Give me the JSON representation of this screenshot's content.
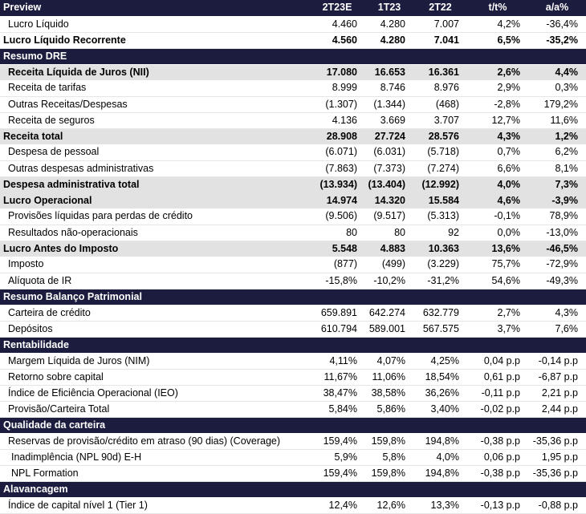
{
  "table": {
    "columns": [
      "Preview",
      "2T23E",
      "1T23",
      "2T22",
      "t/t%",
      "a/a%"
    ],
    "rows": [
      {
        "type": "row",
        "cells": [
          "Lucro Líquido",
          "4.460",
          "4.280",
          "7.007",
          "4,2%",
          "-36,4%"
        ]
      },
      {
        "type": "bold",
        "cells": [
          "Lucro Líquido Recorrente",
          "4.560",
          "4.280",
          "7.041",
          "6,5%",
          "-35,2%"
        ]
      },
      {
        "type": "section",
        "cells": [
          "Resumo DRE"
        ]
      },
      {
        "type": "hl-ind",
        "cells": [
          "Receita Líquida de Juros (NII)",
          "17.080",
          "16.653",
          "16.361",
          "2,6%",
          "4,4%"
        ]
      },
      {
        "type": "row",
        "cells": [
          "Receita de tarifas",
          "8.999",
          "8.746",
          "8.976",
          "2,9%",
          "0,3%"
        ]
      },
      {
        "type": "row",
        "cells": [
          "Outras Receitas/Despesas",
          "(1.307)",
          "(1.344)",
          "(468)",
          "-2,8%",
          "179,2%"
        ]
      },
      {
        "type": "row",
        "cells": [
          "Receita de seguros",
          "4.136",
          "3.669",
          "3.707",
          "12,7%",
          "11,6%"
        ]
      },
      {
        "type": "hl",
        "cells": [
          "Receita total",
          "28.908",
          "27.724",
          "28.576",
          "4,3%",
          "1,2%"
        ]
      },
      {
        "type": "row",
        "cells": [
          "Despesa de pessoal",
          "(6.071)",
          "(6.031)",
          "(5.718)",
          "0,7%",
          "6,2%"
        ]
      },
      {
        "type": "row",
        "cells": [
          "Outras despesas administrativas",
          "(7.863)",
          "(7.373)",
          "(7.274)",
          "6,6%",
          "8,1%"
        ]
      },
      {
        "type": "hl",
        "cells": [
          "Despesa administrativa total",
          "(13.934)",
          "(13.404)",
          "(12.992)",
          "4,0%",
          "7,3%"
        ]
      },
      {
        "type": "hl",
        "cells": [
          "Lucro Operacional",
          "14.974",
          "14.320",
          "15.584",
          "4,6%",
          "-3,9%"
        ]
      },
      {
        "type": "row",
        "cells": [
          "Provisões líquidas para perdas de crédito",
          "(9.506)",
          "(9.517)",
          "(5.313)",
          "-0,1%",
          "78,9%"
        ]
      },
      {
        "type": "row",
        "cells": [
          "Resultados não-operacionais",
          "80",
          "80",
          "92",
          "0,0%",
          "-13,0%"
        ]
      },
      {
        "type": "hl",
        "cells": [
          "Lucro Antes do Imposto",
          "5.548",
          "4.883",
          "10.363",
          "13,6%",
          "-46,5%"
        ]
      },
      {
        "type": "row",
        "cells": [
          "Imposto",
          "(877)",
          "(499)",
          "(3.229)",
          "75,7%",
          "-72,9%"
        ]
      },
      {
        "type": "row",
        "cells": [
          "Alíquota de IR",
          "-15,8%",
          "-10,2%",
          "-31,2%",
          "54,6%",
          "-49,3%"
        ]
      },
      {
        "type": "section",
        "cells": [
          "Resumo Balanço Patrimonial"
        ]
      },
      {
        "type": "row",
        "cells": [
          "Carteira de crédito",
          "659.891",
          "642.274",
          "632.779",
          "2,7%",
          "4,3%"
        ]
      },
      {
        "type": "row",
        "cells": [
          "Depósitos",
          "610.794",
          "589.001",
          "567.575",
          "3,7%",
          "7,6%"
        ]
      },
      {
        "type": "section",
        "cells": [
          "Rentabilidade"
        ]
      },
      {
        "type": "row",
        "cells": [
          "Margem Líquida de Juros (NIM)",
          "4,11%",
          "4,07%",
          "4,25%",
          "0,04 p.p",
          "-0,14 p.p"
        ]
      },
      {
        "type": "row",
        "cells": [
          "Retorno sobre capital",
          "11,67%",
          "11,06%",
          "18,54%",
          "0,61 p.p",
          "-6,87 p.p"
        ]
      },
      {
        "type": "row",
        "cells": [
          "Índice de Eficiência Operacional (IEO)",
          "38,47%",
          "38,58%",
          "36,26%",
          "-0,11 p.p",
          "2,21 p.p"
        ]
      },
      {
        "type": "row",
        "cells": [
          "Provisão/Carteira Total",
          "5,84%",
          "5,86%",
          "3,40%",
          "-0,02 p.p",
          "2,44 p.p"
        ]
      },
      {
        "type": "section",
        "cells": [
          "Qualidade da carteira"
        ]
      },
      {
        "type": "row",
        "cells": [
          "Reservas de provisão/crédito em atraso (90 dias) (Coverage)",
          "159,4%",
          "159,8%",
          "194,8%",
          "-0,38 p.p",
          "-35,36 p.p"
        ]
      },
      {
        "type": "row-ind",
        "cells": [
          "Inadimplência (NPL 90d) E-H",
          "5,9%",
          "5,8%",
          "4,0%",
          "0,06 p.p",
          "1,95 p.p"
        ]
      },
      {
        "type": "row-ind",
        "cells": [
          "NPL Formation",
          "159,4%",
          "159,8%",
          "194,8%",
          "-0,38 p.p",
          "-35,36 p.p"
        ]
      },
      {
        "type": "section",
        "cells": [
          "Alavancagem"
        ]
      },
      {
        "type": "row",
        "cells": [
          "Índice de capital nível 1 (Tier 1)",
          "12,4%",
          "12,6%",
          "13,3%",
          "-0,13 p.p",
          "-0,88 p.p"
        ]
      }
    ]
  }
}
